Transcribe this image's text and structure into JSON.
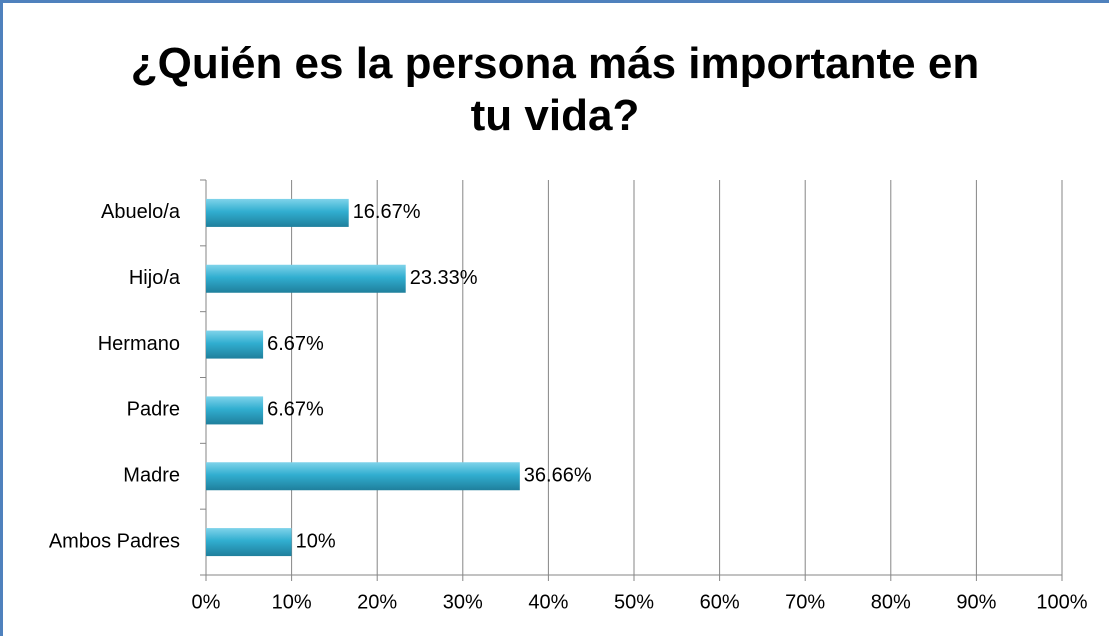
{
  "chart_data": {
    "type": "bar",
    "orientation": "horizontal",
    "title": "¿Quién es la persona más importante en tu vida?",
    "categories": [
      "Abuelo/a",
      "Hijo/a",
      "Hermano",
      "Padre",
      "Madre",
      "Ambos Padres"
    ],
    "values": [
      16.67,
      23.33,
      6.67,
      6.67,
      36.66,
      10
    ],
    "value_labels": [
      "16.67%",
      "23.33%",
      "6.67%",
      "6.67%",
      "36.66%",
      "10%"
    ],
    "color": "#31aed0",
    "xlim": [
      0,
      100
    ],
    "xticks": [
      {
        "value": 0,
        "label": "0%"
      },
      {
        "value": 10,
        "label": "10%"
      },
      {
        "value": 20,
        "label": "20%"
      },
      {
        "value": 30,
        "label": "30%"
      },
      {
        "value": 40,
        "label": "40%"
      },
      {
        "value": 50,
        "label": "50%"
      },
      {
        "value": 60,
        "label": "60%"
      },
      {
        "value": 70,
        "label": "70%"
      },
      {
        "value": 80,
        "label": "80%"
      },
      {
        "value": 90,
        "label": "90%"
      },
      {
        "value": 100,
        "label": "100%"
      }
    ],
    "grid": true
  }
}
